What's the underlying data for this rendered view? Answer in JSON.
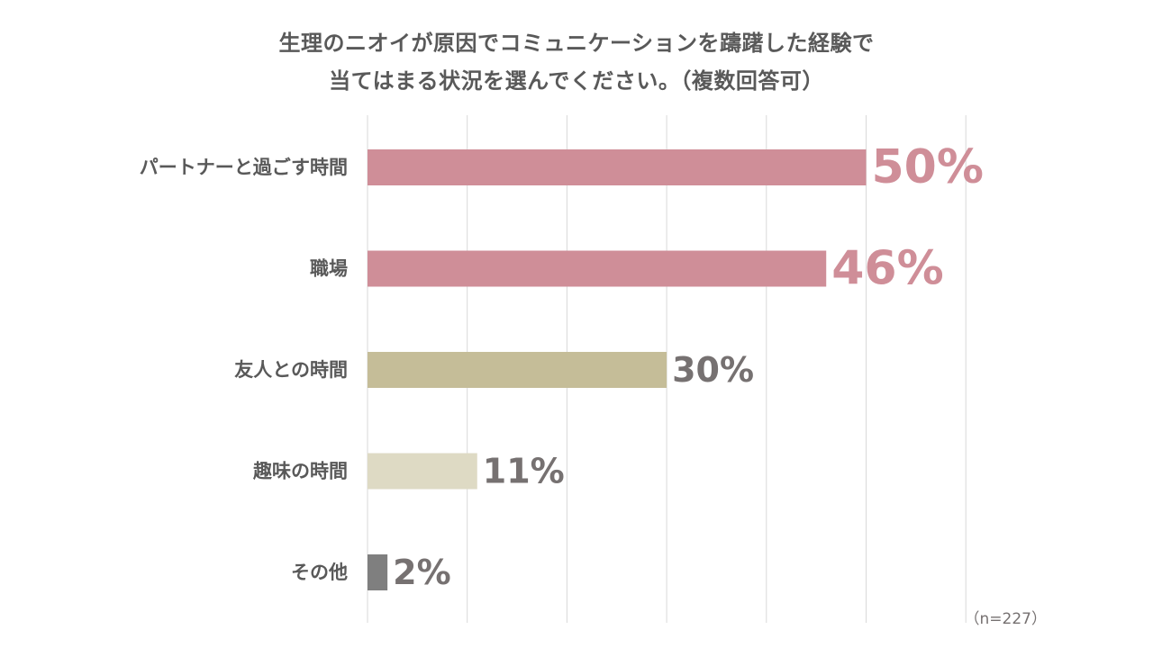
{
  "chart_data": {
    "type": "bar",
    "orientation": "horizontal",
    "title_lines": [
      "生理のニオイが原因でコミュニケーションを躊躇した経験で",
      "当てはまる状況を選んでください。（複数回答可）"
    ],
    "categories": [
      "パートナーと過ごす時間",
      "職場",
      "友人との時間",
      "趣味の時間",
      "その他"
    ],
    "values": [
      50,
      46,
      30,
      11,
      2
    ],
    "value_labels": [
      "50%",
      "46%",
      "30%",
      "11%",
      "2%"
    ],
    "bar_colors": [
      "#cf8e98",
      "#cf8e98",
      "#c5bd98",
      "#dedac4",
      "#7f7f7f"
    ],
    "label_colors": [
      "#cf8e98",
      "#cf8e98",
      "#767171",
      "#767171",
      "#767171"
    ],
    "label_sizes": [
      "large",
      "large",
      "medium",
      "medium",
      "medium"
    ],
    "xlim": [
      0,
      60
    ],
    "grid_step": 10,
    "grid": true,
    "note": "（n=227）"
  }
}
